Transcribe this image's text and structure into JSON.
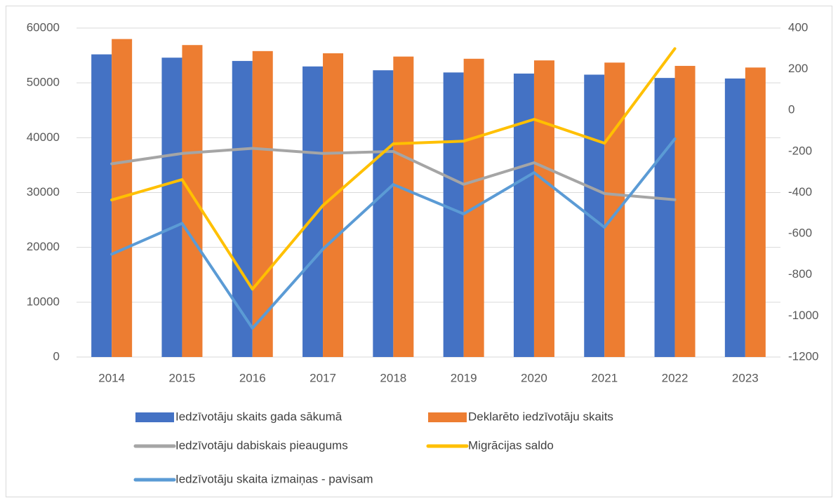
{
  "chart_data": {
    "type": "bar",
    "categories": [
      "2014",
      "2015",
      "2016",
      "2017",
      "2018",
      "2019",
      "2020",
      "2021",
      "2022",
      "2023"
    ],
    "series": [
      {
        "name": "Iedzīvotāju skaits gada sākumā",
        "type": "bar",
        "color": "#4472c4",
        "values": [
          55200,
          54600,
          54000,
          53000,
          52300,
          51900,
          51700,
          51500,
          50900,
          50800
        ]
      },
      {
        "name": "Deklarēto iedzīvotāju skaits",
        "type": "bar",
        "color": "#ed7d31",
        "values": [
          58000,
          56900,
          55800,
          55400,
          54800,
          54400,
          54100,
          53700,
          53100,
          52800
        ]
      },
      {
        "name": "Iedzīvotāju dabiskais pieaugums",
        "type": "line",
        "axis": "y2",
        "color": "#a5a5a5",
        "values": [
          -260,
          -210,
          -185,
          -210,
          -200,
          -360,
          -255,
          -405,
          -435,
          null
        ]
      },
      {
        "name": "Migrācijas saldo",
        "type": "line",
        "axis": "y2",
        "color": "#ffc000",
        "values": [
          -436,
          -337,
          -870,
          -463,
          -163,
          -150,
          -44,
          -160,
          300,
          null
        ]
      },
      {
        "name": "Iedzīvotāju skaita izmaiņas - pavisam",
        "type": "line",
        "axis": "y2",
        "color": "#5b9bd5",
        "values": [
          -700,
          -550,
          -1060,
          -675,
          -361,
          -504,
          -303,
          -569,
          -139,
          null
        ]
      }
    ],
    "ylim": [
      0,
      60000
    ],
    "yticks": [
      0,
      10000,
      20000,
      30000,
      40000,
      50000,
      60000
    ],
    "y2lim": [
      -1200,
      400
    ],
    "y2ticks": [
      -1200,
      -1000,
      -800,
      -600,
      -400,
      -200,
      0,
      200,
      400
    ],
    "grid": true
  }
}
